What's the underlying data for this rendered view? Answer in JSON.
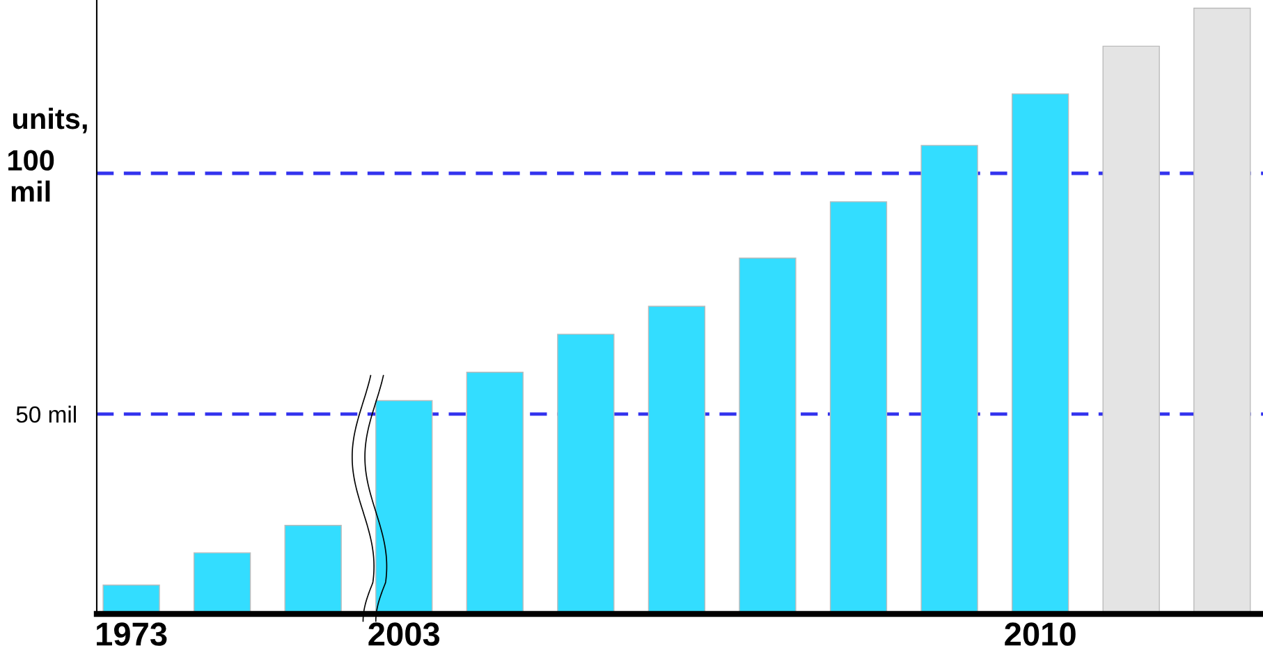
{
  "chart_data": {
    "type": "bar",
    "ylabel": "units,",
    "categories": [
      "1973",
      null,
      null,
      "2003",
      null,
      null,
      null,
      null,
      null,
      null,
      "2010",
      null,
      null
    ],
    "values": [
      14.5,
      21.2,
      26.9,
      52.8,
      58.7,
      66.6,
      72.4,
      82.4,
      94.1,
      105.8,
      116.5,
      126.4,
      134.3
    ],
    "colors": [
      "#33ddff",
      "#33ddff",
      "#33ddff",
      "#33ddff",
      "#33ddff",
      "#33ddff",
      "#33ddff",
      "#33ddff",
      "#33ddff",
      "#33ddff",
      "#33ddff",
      "#e4e4e4",
      "#e4e4e4"
    ],
    "ylim": [
      8.5,
      136
    ],
    "yticks": [
      {
        "value": 50,
        "label": "50 mil"
      },
      {
        "value": 100,
        "label": "100\nmil"
      }
    ],
    "ref_lines": [
      {
        "axis": "y",
        "value": 50,
        "color": "#3333ee",
        "line_style": "dashed"
      },
      {
        "axis": "y",
        "value": 100,
        "color": "#3333ee",
        "line_style": "dashed"
      }
    ],
    "grid": false,
    "legend": false
  }
}
